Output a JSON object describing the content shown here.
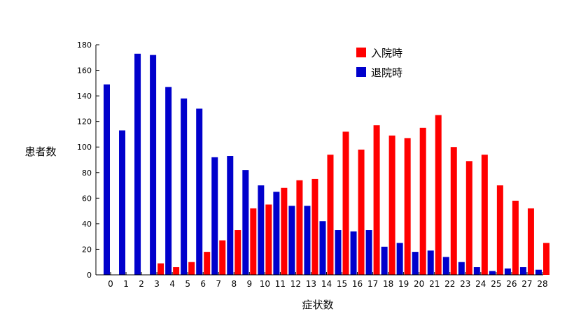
{
  "chart_data": {
    "type": "bar",
    "xlabel": "症状数",
    "ylabel": "患者数",
    "ylim": [
      0,
      180
    ],
    "y_ticks": [
      0,
      20,
      40,
      60,
      80,
      100,
      120,
      140,
      160,
      180
    ],
    "categories": [
      "0",
      "1",
      "2",
      "3",
      "4",
      "5",
      "6",
      "7",
      "8",
      "9",
      "10",
      "11",
      "12",
      "13",
      "14",
      "15",
      "16",
      "17",
      "18",
      "19",
      "20",
      "21",
      "22",
      "23",
      "24",
      "25",
      "26",
      "27",
      "28"
    ],
    "legend_position": "top-right",
    "grid": false,
    "series": [
      {
        "name": "入院時",
        "color": "#ff0000",
        "values": [
          0,
          0,
          0,
          9,
          6,
          10,
          18,
          27,
          35,
          52,
          55,
          68,
          74,
          75,
          94,
          112,
          98,
          117,
          109,
          107,
          115,
          125,
          100,
          89,
          94,
          70,
          58,
          52,
          25
        ]
      },
      {
        "name": "退院時",
        "color": "#0000cc",
        "values": [
          149,
          113,
          173,
          172,
          147,
          138,
          130,
          92,
          93,
          82,
          70,
          65,
          54,
          54,
          42,
          35,
          34,
          35,
          22,
          25,
          18,
          19,
          14,
          10,
          6,
          3,
          5,
          6,
          4
        ]
      }
    ]
  }
}
